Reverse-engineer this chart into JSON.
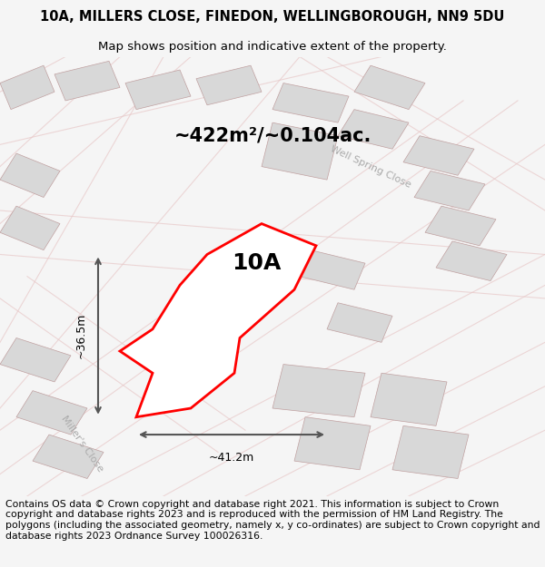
{
  "title_line1": "10A, MILLERS CLOSE, FINEDON, WELLINGBOROUGH, NN9 5DU",
  "title_line2": "Map shows position and indicative extent of the property.",
  "area_text": "~422m²/~0.104ac.",
  "label_10A": "10A",
  "width_label": "~41.2m",
  "height_label": "~36.5m",
  "street_label1": "Well Spring Close",
  "street_label2": "Miller's Close",
  "footer_text": "Contains OS data © Crown copyright and database right 2021. This information is subject to Crown copyright and database rights 2023 and is reproduced with the permission of HM Land Registry. The polygons (including the associated geometry, namely x, y co-ordinates) are subject to Crown copyright and database rights 2023 Ordnance Survey 100026316.",
  "bg_color": "#f5f5f5",
  "map_bg": "#f0f0f0",
  "plot_color": "#ff0000",
  "plot_fill": "#ffffff",
  "building_fill": "#d8d8d8",
  "building_edge": "#c0a0a0",
  "road_color": "#e8c8c8",
  "title_fontsize": 10.5,
  "subtitle_fontsize": 9.5,
  "area_fontsize": 16,
  "label_fontsize": 18,
  "footer_fontsize": 7.8
}
